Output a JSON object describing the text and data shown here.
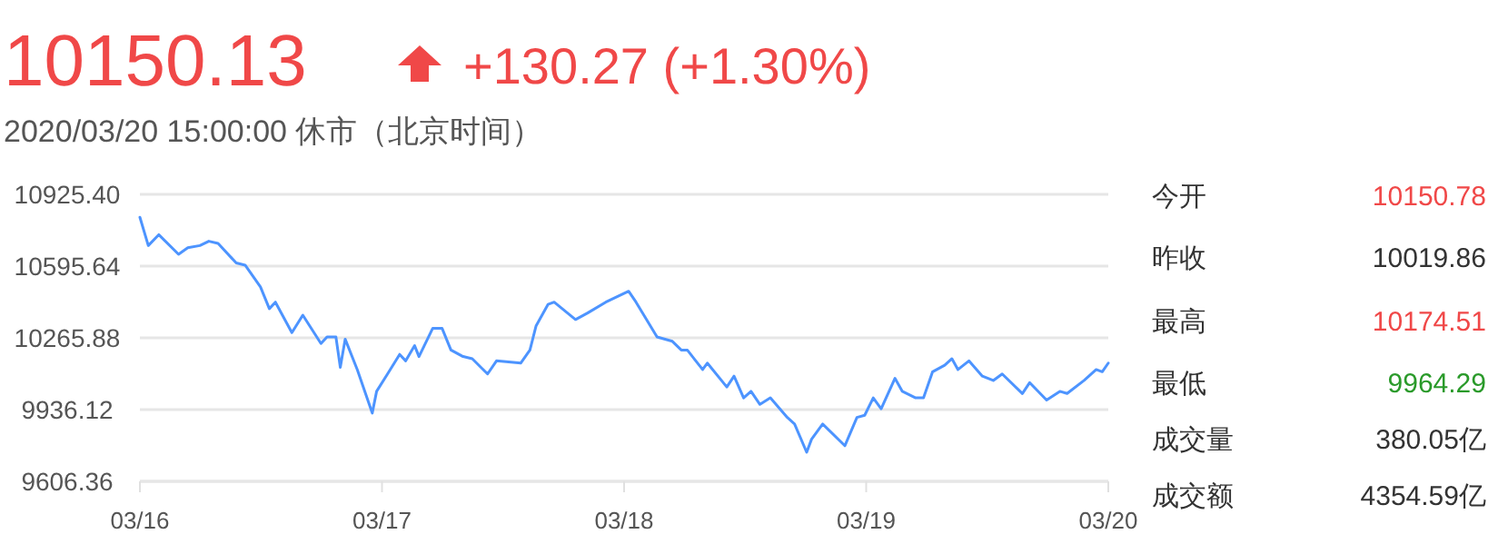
{
  "chart_data": [
    {
      "type": "line",
      "title": "10150.13",
      "subtitle": "2020/03/20 15:00:00  休市（北京时间）",
      "annotations": [
        "+130.27 (+1.30%)"
      ],
      "x": [
        "2020-03-16T00:00",
        "2020-03-16T00:50",
        "2020-03-16T01:52",
        "2020-03-16T03:50",
        "2020-03-16T04:45",
        "2020-03-16T05:57",
        "2020-03-16T06:50",
        "2020-03-16T07:45",
        "2020-03-16T09:33",
        "2020-03-16T10:26",
        "2020-03-16T11:57",
        "2020-03-16T12:50",
        "2020-03-16T13:26",
        "2020-03-16T15:04",
        "2020-03-16T16:09",
        "2020-03-16T17:57",
        "2020-03-16T18:33",
        "2020-03-16T19:26",
        "2020-03-16T19:52",
        "2020-03-16T20:21",
        "2020-03-16T21:33",
        "2020-03-16T23:02",
        "2020-03-16T23:28",
        "2020-03-17T00:33",
        "2020-03-17T01:45",
        "2020-03-17T02:21",
        "2020-03-17T03:14",
        "2020-03-17T03:40",
        "2020-03-17T05:02",
        "2020-03-17T05:57",
        "2020-03-17T06:50",
        "2020-03-17T08:02",
        "2020-03-17T08:57",
        "2020-03-17T10:28",
        "2020-03-17T11:21",
        "2020-03-17T13:45",
        "2020-03-17T14:40",
        "2020-03-17T15:16",
        "2020-03-17T16:28",
        "2020-03-17T17:04",
        "2020-03-17T19:11",
        "2020-03-17T20:23",
        "2020-03-17T22:11",
        "2020-03-18T00:27",
        "2020-03-18T01:11",
        "2020-03-18T03:16",
        "2020-03-18T04:47",
        "2020-03-18T05:40",
        "2020-03-18T06:16",
        "2020-03-18T07:47",
        "2020-03-18T08:15",
        "2020-03-18T10:11",
        "2020-03-18T10:54",
        "2020-03-18T11:51",
        "2020-03-18T12:35",
        "2020-03-18T13:28",
        "2020-03-18T14:30",
        "2020-03-18T16:11",
        "2020-03-18T16:54",
        "2020-03-18T18:06",
        "2020-03-18T18:35",
        "2020-03-18T19:41",
        "2020-03-18T21:53",
        "2020-03-18T23:05",
        "2020-03-18T23:51",
        "2020-03-19T00:42",
        "2020-03-19T01:29",
        "2020-03-19T02:51",
        "2020-03-19T03:35",
        "2020-03-19T04:54",
        "2020-03-19T05:41",
        "2020-03-19T06:35",
        "2020-03-19T07:47",
        "2020-03-19T08:30",
        "2020-03-19T09:06",
        "2020-03-19T10:11",
        "2020-03-19T11:31",
        "2020-03-19T12:36",
        "2020-03-19T13:29",
        "2020-03-19T15:29",
        "2020-03-19T16:12",
        "2020-03-19T17:53",
        "2020-03-19T19:12",
        "2020-03-19T19:55",
        "2020-03-19T21:36",
        "2020-03-19T22:48",
        "2020-03-19T23:24",
        "2020-03-20T00:00"
      ],
      "series": [
        {
          "color": "#4d94ff",
          "values": [
            10820,
            10690,
            10740,
            10650,
            10680,
            10690,
            10710,
            10700,
            10610,
            10600,
            10500,
            10400,
            10430,
            10290,
            10370,
            10240,
            10270,
            10270,
            10130,
            10260,
            10120,
            9920,
            10020,
            10100,
            10190,
            10160,
            10230,
            10180,
            10310,
            10310,
            10210,
            10180,
            10170,
            10100,
            10160,
            10150,
            10210,
            10320,
            10420,
            10430,
            10350,
            10380,
            10430,
            10480,
            10430,
            10270,
            10250,
            10210,
            10210,
            10120,
            10150,
            10040,
            10090,
            9990,
            10020,
            9960,
            9990,
            9900,
            9870,
            9740,
            9800,
            9870,
            9770,
            9900,
            9910,
            9990,
            9940,
            10080,
            10020,
            9990,
            9990,
            10110,
            10140,
            10170,
            10120,
            10160,
            10090,
            10070,
            10100,
            10010,
            10060,
            9980,
            10020,
            10010,
            10070,
            10120,
            10110,
            10150
          ]
        }
      ],
      "xlim": [
        "2020-03-16",
        "2020-03-20"
      ],
      "xticks": [
        {
          "value": "2020-03-16",
          "label": "03/16"
        },
        {
          "value": "2020-03-17",
          "label": "03/17"
        },
        {
          "value": "2020-03-18",
          "label": "03/18"
        },
        {
          "value": "2020-03-19",
          "label": "03/19"
        },
        {
          "value": "2020-03-20",
          "label": "03/20"
        }
      ],
      "ylim": [
        9606.36,
        10925.4
      ],
      "yticks": [
        {
          "value": 9606.36,
          "label": "9606.36"
        },
        {
          "value": 9936.12,
          "label": "9936.12"
        },
        {
          "value": 10265.88,
          "label": "10265.88"
        },
        {
          "value": 10595.64,
          "label": "10595.64"
        },
        {
          "value": 10925.4,
          "label": "10925.40"
        }
      ],
      "grid": "y",
      "marker": "none",
      "line_style": "solid"
    },
    {
      "type": "other",
      "categories": [
        "今开",
        "昨收",
        "最高",
        "最低",
        "成交量",
        "成交额"
      ],
      "value_labels": [
        "10150.78",
        "10019.86",
        "10174.51",
        "9964.29",
        "380.05亿",
        "4354.59亿"
      ],
      "colors": [
        "#f04848",
        "#333333",
        "#f04848",
        "#2a9a2a",
        "#333333",
        "#333333"
      ]
    }
  ]
}
